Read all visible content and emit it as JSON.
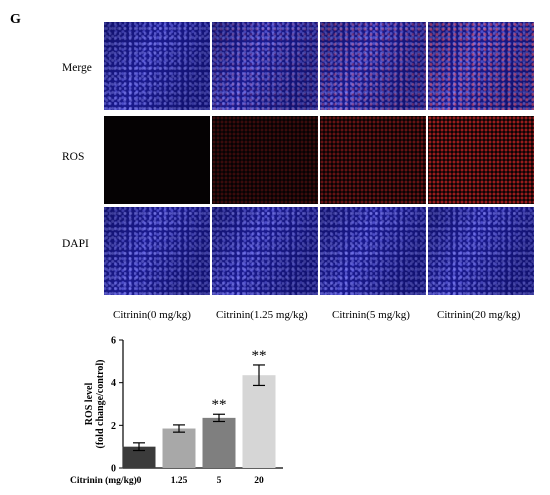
{
  "panel_letter": "G",
  "micrograph": {
    "rows": [
      "Merge",
      "ROS",
      "DAPI"
    ],
    "columns": [
      "Citrinin(0 mg/kg)",
      "Citrinin(1.25 mg/kg)",
      "Citrinin(5 mg/kg)",
      "Citrinin(20 mg/kg)"
    ],
    "colors": {
      "dapi": "#1a1a8f",
      "ros": "#dc2828",
      "background": "#050203"
    }
  },
  "chart_data": {
    "type": "bar",
    "categories": [
      "0",
      "1.25",
      "5",
      "20"
    ],
    "values": [
      1.0,
      1.85,
      2.35,
      4.35
    ],
    "errors": [
      0.18,
      0.17,
      0.17,
      0.48
    ],
    "significance": [
      "",
      "",
      "**",
      "**"
    ],
    "bar_colors": [
      "#3b3b3b",
      "#a8a8a8",
      "#7f7f7f",
      "#d6d6d6"
    ],
    "ylabel_line1": "ROS level",
    "ylabel_line2": "(fold change/control)",
    "xlabel": "Citrinin (mg/kg)",
    "ylim": [
      0,
      6
    ],
    "yticks": [
      "0",
      "2",
      "4",
      "6"
    ],
    "grid": false
  }
}
